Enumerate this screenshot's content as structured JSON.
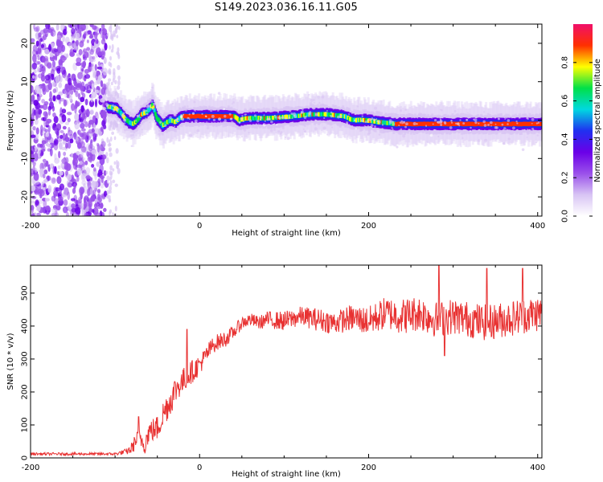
{
  "title": "S149.2023.036.16.11.G05",
  "colors": {
    "snr_line": "#e83232",
    "colormap": [
      "#ffffff",
      "#d8c4f4",
      "#9a50ea",
      "#6a00e8",
      "#2030f0",
      "#00d8e0",
      "#00e048",
      "#ffff00",
      "#ff3000",
      "#f0106a"
    ]
  },
  "chart_data": [
    {
      "type": "heatmap",
      "xlabel": "Height of straight line (km)",
      "ylabel": "Frequency (Hz)",
      "xlim": [
        -200,
        405
      ],
      "ylim": [
        -25,
        25
      ],
      "xticks": [
        -200,
        0,
        200,
        400
      ],
      "yticks": [
        -20,
        -10,
        0,
        10,
        20
      ],
      "grid": false,
      "dense_noise_region_x": [
        -200,
        -110
      ],
      "noise_fade_region_x": [
        -110,
        -95
      ],
      "ridge": [
        [
          -110,
          3.5
        ],
        [
          -100,
          3
        ],
        [
          -95,
          2
        ],
        [
          -90,
          0.5
        ],
        [
          -85,
          -0.5
        ],
        [
          -80,
          -1
        ],
        [
          -75,
          0
        ],
        [
          -70,
          1.5
        ],
        [
          -65,
          2
        ],
        [
          -60,
          3
        ],
        [
          -57,
          4
        ],
        [
          -52,
          0.5
        ],
        [
          -48,
          -0.5
        ],
        [
          -45,
          -1.5
        ],
        [
          -40,
          -0.5
        ],
        [
          -35,
          0
        ],
        [
          -30,
          -0.5
        ],
        [
          -25,
          0.5
        ],
        [
          -20,
          1
        ],
        [
          40,
          1
        ],
        [
          45,
          0
        ],
        [
          55,
          0.5
        ],
        [
          80,
          0.5
        ],
        [
          110,
          1
        ],
        [
          130,
          1.5
        ],
        [
          150,
          1.5
        ],
        [
          170,
          1
        ],
        [
          180,
          0
        ],
        [
          195,
          0
        ],
        [
          210,
          -0.5
        ],
        [
          230,
          -1
        ],
        [
          260,
          -1
        ],
        [
          300,
          -1
        ],
        [
          350,
          -1
        ],
        [
          405,
          -1
        ]
      ]
    },
    {
      "type": "line",
      "xlabel": "Height of straight line (km)",
      "ylabel": "SNR (10 * v/v)",
      "xlim": [
        -200,
        405
      ],
      "ylim": [
        0,
        585
      ],
      "xticks": [
        -200,
        0,
        200,
        400
      ],
      "yticks": [
        0,
        100,
        200,
        300,
        400,
        500
      ],
      "grid": false,
      "series": [
        {
          "x": [
            -200,
            -150,
            -100,
            -85,
            -80,
            -75,
            -70,
            -65,
            -60,
            -50,
            -45,
            -40,
            -35,
            -30,
            -25,
            -20,
            -15,
            -10,
            -5,
            0,
            5,
            10,
            15,
            20,
            30,
            40,
            50,
            60,
            70,
            80,
            100,
            120,
            140,
            160,
            180,
            200,
            220,
            240,
            260,
            280,
            300,
            320,
            340,
            360,
            380,
            405
          ],
          "y": [
            12,
            12,
            12,
            20,
            30,
            55,
            60,
            40,
            80,
            90,
            120,
            150,
            170,
            200,
            220,
            230,
            250,
            260,
            270,
            285,
            300,
            320,
            340,
            350,
            360,
            380,
            410,
            420,
            410,
            420,
            415,
            430,
            420,
            410,
            425,
            415,
            440,
            430,
            440,
            420,
            430,
            420,
            410,
            420,
            430,
            440
          ],
          "noise_amp": [
            4,
            4,
            4,
            10,
            20,
            25,
            30,
            30,
            35,
            40,
            45,
            45,
            45,
            45,
            40,
            40,
            40,
            35,
            35,
            30,
            30,
            30,
            25,
            25,
            25,
            20,
            20,
            20,
            20,
            25,
            30,
            30,
            35,
            35,
            40,
            45,
            50,
            55,
            55,
            55,
            55,
            55,
            55,
            55,
            55,
            55
          ],
          "spikes": [
            [
              -72,
              125
            ],
            [
              -15,
              390
            ],
            [
              340,
              575
            ],
            [
              283,
              585
            ],
            [
              382,
              575
            ],
            [
              290,
              310
            ]
          ]
        }
      ]
    }
  ],
  "colorbar": {
    "label": "Normalized spectral amplitude",
    "range": [
      0,
      1
    ],
    "ticks": [
      "0.0",
      "0.2",
      "0.4",
      "0.6",
      "0.8"
    ]
  }
}
